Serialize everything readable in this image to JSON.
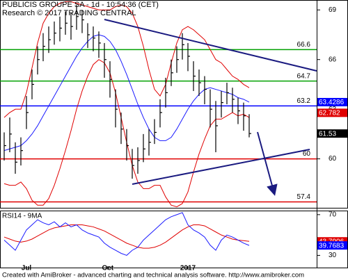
{
  "chart_data": [
    {
      "type": "ohlc",
      "title": "PUBLICIS GROUPE SA - 1d - 10:54:36 (CET)",
      "subtitle": "Research © 2017 TRADING CENTRAL",
      "bar_color": "#000000",
      "high": [
        61.6,
        62.5,
        61.0,
        61.3,
        63.8,
        65.4,
        66.8,
        67.6,
        68.0,
        68.3,
        68.6,
        68.9,
        68.8,
        69.3,
        69.0,
        68.2,
        68.0,
        67.7,
        67.0,
        65.9,
        64.2,
        62.8,
        61.8,
        60.6,
        60.7,
        61.5,
        61.8,
        62.4,
        63.6,
        64.9,
        66.0,
        66.8,
        67.6,
        67.0,
        65.9,
        65.4,
        65.0,
        64.2,
        63.5,
        64.1,
        64.6,
        64.3,
        63.7,
        63.4,
        62.7
      ],
      "low": [
        59.9,
        60.4,
        59.1,
        59.6,
        61.8,
        63.6,
        65.1,
        65.9,
        66.4,
        66.9,
        67.1,
        67.5,
        67.2,
        67.8,
        67.6,
        66.7,
        66.5,
        66.1,
        64.9,
        63.7,
        61.9,
        60.9,
        59.9,
        58.8,
        59.1,
        59.8,
        60.2,
        60.9,
        61.9,
        63.1,
        64.4,
        65.2,
        66.0,
        65.3,
        64.1,
        63.8,
        63.3,
        61.9,
        60.4,
        62.5,
        63.3,
        62.8,
        62.1,
        61.7,
        61.3
      ],
      "close": [
        60.8,
        61.5,
        59.8,
        60.5,
        62.8,
        64.5,
        66.0,
        66.8,
        67.2,
        67.6,
        67.9,
        68.2,
        68.0,
        68.6,
        68.4,
        67.5,
        67.3,
        67.0,
        66.0,
        64.8,
        63.0,
        61.8,
        60.8,
        59.6,
        59.9,
        60.6,
        61.0,
        61.6,
        62.8,
        64.0,
        65.2,
        66.0,
        66.9,
        66.2,
        65.0,
        64.6,
        64.2,
        63.0,
        62.0,
        63.4,
        64.0,
        63.6,
        62.9,
        62.6,
        61.53
      ],
      "series": [
        {
          "color": "#e00000",
          "values": [
            62.5,
            62.8,
            63.0,
            63.0,
            64.0,
            65.5,
            67.0,
            68.2,
            68.8,
            69.2,
            69.4,
            69.5,
            69.5,
            69.4,
            69.3,
            69.2,
            69.1,
            69.0,
            69.0,
            69.0,
            69.2,
            69.3,
            69.2,
            68.8,
            68.0,
            66.8,
            65.4,
            64.2,
            63.8,
            64.5,
            65.8,
            67.0,
            67.8,
            68.0,
            67.8,
            67.5,
            67.2,
            66.6,
            66.0,
            65.8,
            65.4,
            65.0,
            64.8,
            64.5,
            64.3
          ]
        },
        {
          "color": "#e00000",
          "values": [
            58.5,
            58.4,
            58.4,
            58.6,
            58.2,
            57.5,
            57.2,
            57.2,
            57.6,
            58.4,
            59.4,
            60.5,
            61.7,
            63.0,
            64.1,
            65.0,
            65.7,
            66.0,
            65.8,
            65.2,
            64.0,
            62.5,
            61.0,
            59.6,
            58.6,
            58.2,
            58.2,
            58.4,
            58.4,
            57.7,
            57.2,
            57.1,
            57.3,
            58.0,
            59.2,
            60.3,
            61.2,
            62.0,
            62.4,
            62.4,
            62.6,
            62.8,
            62.6,
            62.7,
            62.5
          ]
        },
        {
          "color": "#1a1aff",
          "values": [
            60.5,
            60.6,
            60.7,
            60.8,
            61.1,
            61.5,
            62.0,
            62.6,
            63.2,
            63.8,
            64.4,
            65.0,
            65.6,
            66.2,
            66.7,
            67.1,
            67.4,
            67.5,
            67.4,
            67.1,
            66.6,
            65.9,
            65.1,
            64.2,
            63.3,
            62.5,
            61.8,
            61.3,
            61.1,
            61.1,
            61.3,
            61.8,
            62.4,
            63.0,
            63.5,
            63.9,
            64.2,
            64.3,
            64.2,
            64.1,
            64.0,
            63.9,
            63.7,
            63.6,
            63.4286
          ]
        }
      ],
      "levels": [
        {
          "value": 66.6,
          "color": "#00a000"
        },
        {
          "value": 64.7,
          "color": "#00a000"
        },
        {
          "value": 63.2,
          "color": "#0000ff"
        },
        {
          "value": 60,
          "color": "#e00000"
        },
        {
          "value": 57.4,
          "color": "#e00000"
        }
      ],
      "last_values": [
        {
          "value": 63.4286,
          "color": "#0000ff"
        },
        {
          "value": 62.782,
          "color": "#e00000"
        },
        {
          "value": 61.53,
          "color": "#000000"
        }
      ],
      "ylim": [
        57,
        69.6
      ],
      "yticks": [
        60,
        63,
        66,
        69
      ],
      "xticks": [
        {
          "value": 4,
          "label": "Jul"
        },
        {
          "value": 18.6,
          "label": "Oct"
        },
        {
          "value": 33,
          "label": "2017"
        }
      ],
      "footer": "Created with AmiBroker - advanced charting and technical analysis software. http://www.amibroker.com"
    },
    {
      "type": "line",
      "title": "RSI14 - 9MA",
      "series": [
        {
          "color": "#e00000",
          "values": [
            48,
            46,
            44,
            43,
            44,
            46,
            49,
            52,
            55,
            57,
            58,
            59,
            60,
            60,
            60,
            59,
            58,
            56,
            54,
            51,
            48,
            45,
            42,
            40,
            38,
            37,
            37,
            38,
            40,
            43,
            47,
            51,
            55,
            58,
            60,
            60,
            59,
            56,
            53,
            50,
            48,
            46,
            45,
            44.5,
            43.7906
          ]
        },
        {
          "color": "#1a1aff",
          "values": [
            45,
            40,
            35,
            45,
            55,
            60,
            65,
            62,
            60,
            63,
            58,
            62,
            58,
            60,
            55,
            52,
            50,
            48,
            42,
            38,
            35,
            32,
            30,
            35,
            38,
            45,
            50,
            55,
            60,
            65,
            68,
            70,
            72,
            60,
            55,
            52,
            48,
            40,
            35,
            45,
            50,
            48,
            45,
            42,
            39.7683
          ]
        }
      ],
      "last_values": [
        {
          "value": 43.7906,
          "color": "#e00000"
        },
        {
          "value": 39.7683,
          "color": "#0000ff"
        }
      ],
      "ylim": [
        18,
        74
      ],
      "yticks": [
        30,
        70
      ]
    }
  ]
}
